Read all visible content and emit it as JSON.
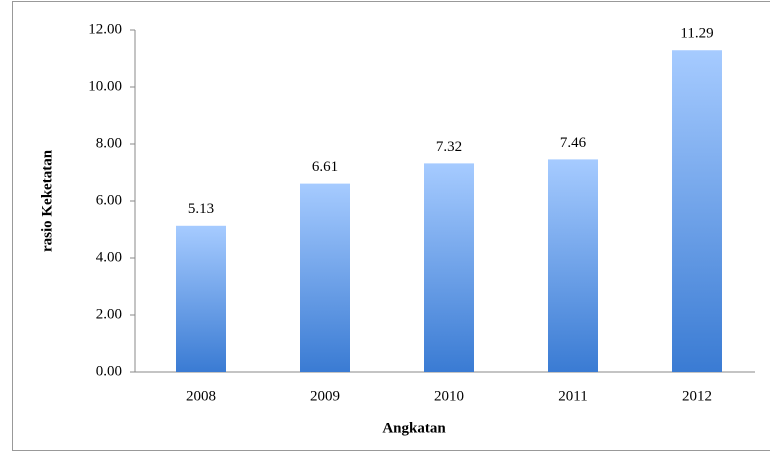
{
  "chart_data": {
    "type": "bar",
    "x_label": "Angkatan",
    "y_label": "rasio Keketatan",
    "categories": [
      "2008",
      "2009",
      "2010",
      "2011",
      "2012"
    ],
    "values": [
      5.13,
      6.61,
      7.32,
      7.46,
      11.29
    ],
    "gradient": [
      "#a6cbff",
      "#3a7bd3"
    ],
    "ylim": [
      0,
      12
    ],
    "yticks": [
      {
        "value": 0,
        "label": "0.00"
      },
      {
        "value": 2,
        "label": "2.00"
      },
      {
        "value": 4,
        "label": "4.00"
      },
      {
        "value": 6,
        "label": "6.00"
      },
      {
        "value": 8,
        "label": "8.00"
      },
      {
        "value": 10,
        "label": "10.00"
      },
      {
        "value": 12,
        "label": "12.00"
      }
    ],
    "grid": false
  }
}
